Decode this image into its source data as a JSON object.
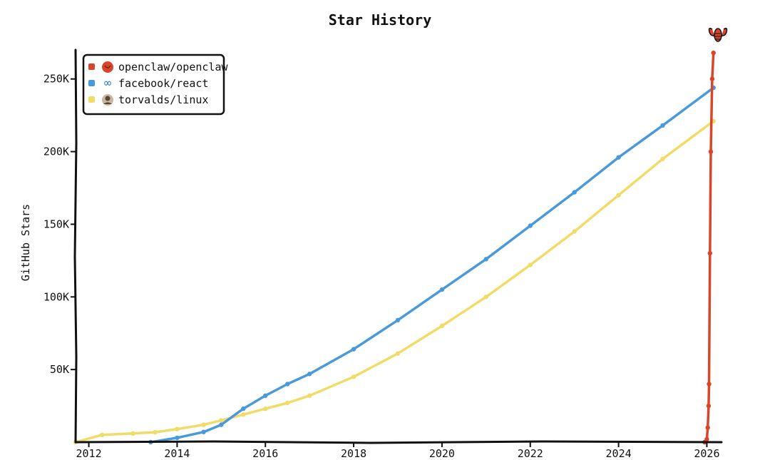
{
  "chart_data": {
    "type": "line",
    "title": "Star History",
    "xlabel": "",
    "ylabel": "GitHub Stars",
    "x_ticks": [
      "2012",
      "2014",
      "2016",
      "2018",
      "2020",
      "2022",
      "2024",
      "2026"
    ],
    "y_ticks": [
      "50K",
      "100K",
      "150K",
      "200K",
      "250K"
    ],
    "xlim": [
      2011.7,
      2026.3
    ],
    "ylim": [
      0,
      270000
    ],
    "grid": false,
    "legend": "top-left",
    "series": [
      {
        "name": "openclaw/openclaw",
        "color": "#d9452b",
        "icon": "lobster-icon",
        "points": [
          [
            2025.95,
            0
          ],
          [
            2026.0,
            2000
          ],
          [
            2026.02,
            10000
          ],
          [
            2026.04,
            25000
          ],
          [
            2026.05,
            40000
          ],
          [
            2026.07,
            130000
          ],
          [
            2026.09,
            200000
          ],
          [
            2026.12,
            250000
          ],
          [
            2026.15,
            268000
          ]
        ]
      },
      {
        "name": "facebook/react",
        "color": "#4a9ad9",
        "icon": "react-icon",
        "points": [
          [
            2013.4,
            0
          ],
          [
            2014.0,
            3000
          ],
          [
            2014.6,
            7000
          ],
          [
            2015.0,
            12000
          ],
          [
            2015.5,
            23000
          ],
          [
            2016.0,
            32000
          ],
          [
            2016.5,
            40000
          ],
          [
            2017.0,
            47000
          ],
          [
            2018.0,
            64000
          ],
          [
            2019.0,
            84000
          ],
          [
            2020.0,
            105000
          ],
          [
            2021.0,
            126000
          ],
          [
            2022.0,
            149000
          ],
          [
            2023.0,
            172000
          ],
          [
            2024.0,
            196000
          ],
          [
            2025.0,
            218000
          ],
          [
            2026.15,
            244000
          ]
        ]
      },
      {
        "name": "torvalds/linux",
        "color": "#f2dc68",
        "icon": "avatar-icon",
        "points": [
          [
            2011.7,
            0
          ],
          [
            2012.3,
            5000
          ],
          [
            2013.0,
            6000
          ],
          [
            2013.5,
            6800
          ],
          [
            2014.0,
            9000
          ],
          [
            2014.6,
            12000
          ],
          [
            2015.0,
            15000
          ],
          [
            2015.5,
            19000
          ],
          [
            2016.0,
            23000
          ],
          [
            2016.5,
            27000
          ],
          [
            2017.0,
            32000
          ],
          [
            2018.0,
            45000
          ],
          [
            2019.0,
            61000
          ],
          [
            2020.0,
            80000
          ],
          [
            2021.0,
            100000
          ],
          [
            2022.0,
            122000
          ],
          [
            2023.0,
            145000
          ],
          [
            2024.0,
            170000
          ],
          [
            2025.0,
            195000
          ],
          [
            2026.15,
            221000
          ]
        ]
      }
    ]
  }
}
